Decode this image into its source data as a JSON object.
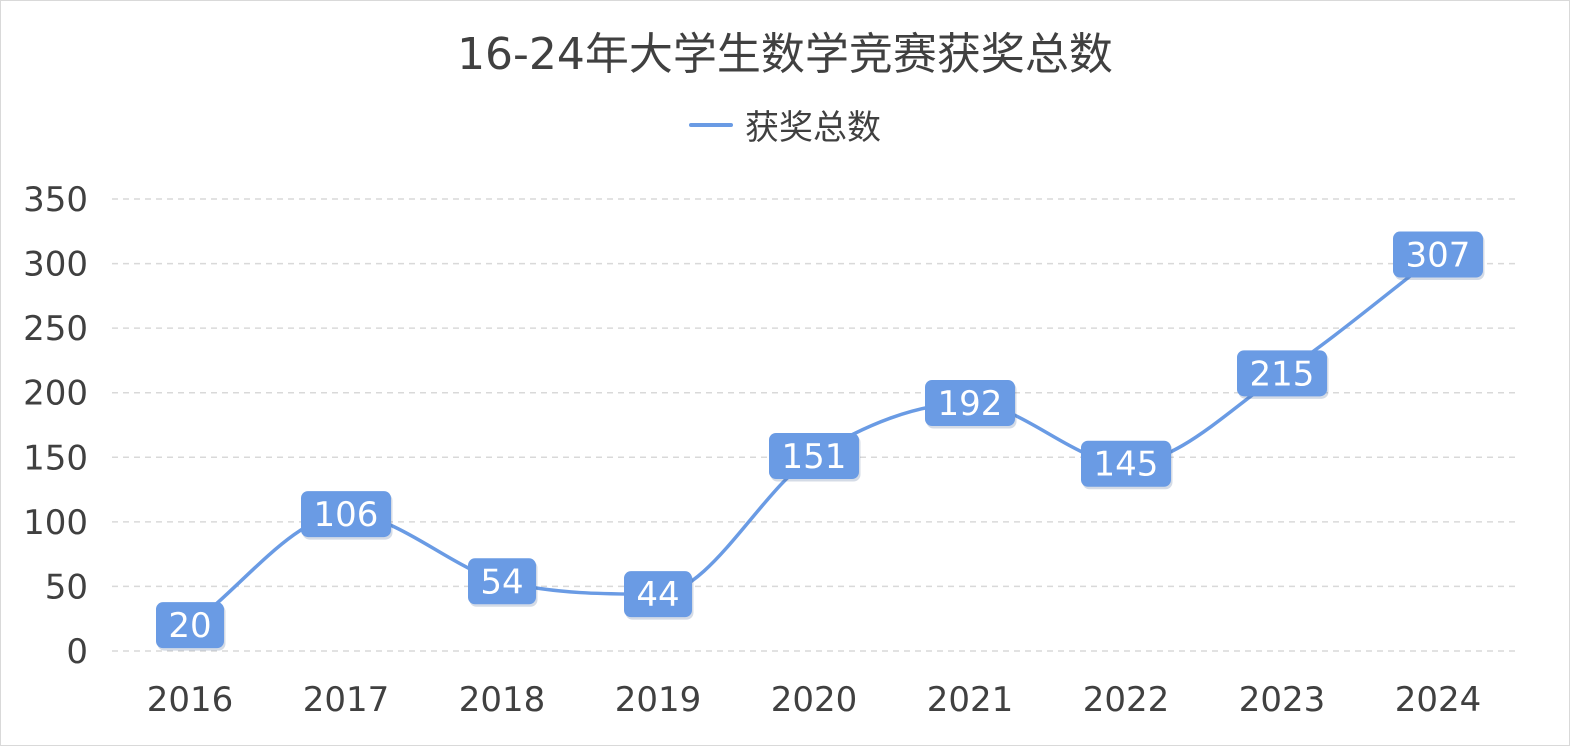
{
  "chart_data": {
    "type": "line",
    "title": "16-24年大学生数学竞赛获奖总数",
    "xlabel": "",
    "ylabel": "",
    "categories": [
      "2016",
      "2017",
      "2018",
      "2019",
      "2020",
      "2021",
      "2022",
      "2023",
      "2024"
    ],
    "series": [
      {
        "name": "获奖总数",
        "values": [
          20,
          106,
          54,
          44,
          151,
          192,
          145,
          215,
          307
        ],
        "color": "#6a9be4"
      }
    ],
    "ylim": [
      0,
      350
    ],
    "yticks": [
      "0",
      "50",
      "100",
      "150",
      "200",
      "250",
      "300",
      "350"
    ],
    "grid": true,
    "legend_position": "top",
    "smooth": true
  }
}
